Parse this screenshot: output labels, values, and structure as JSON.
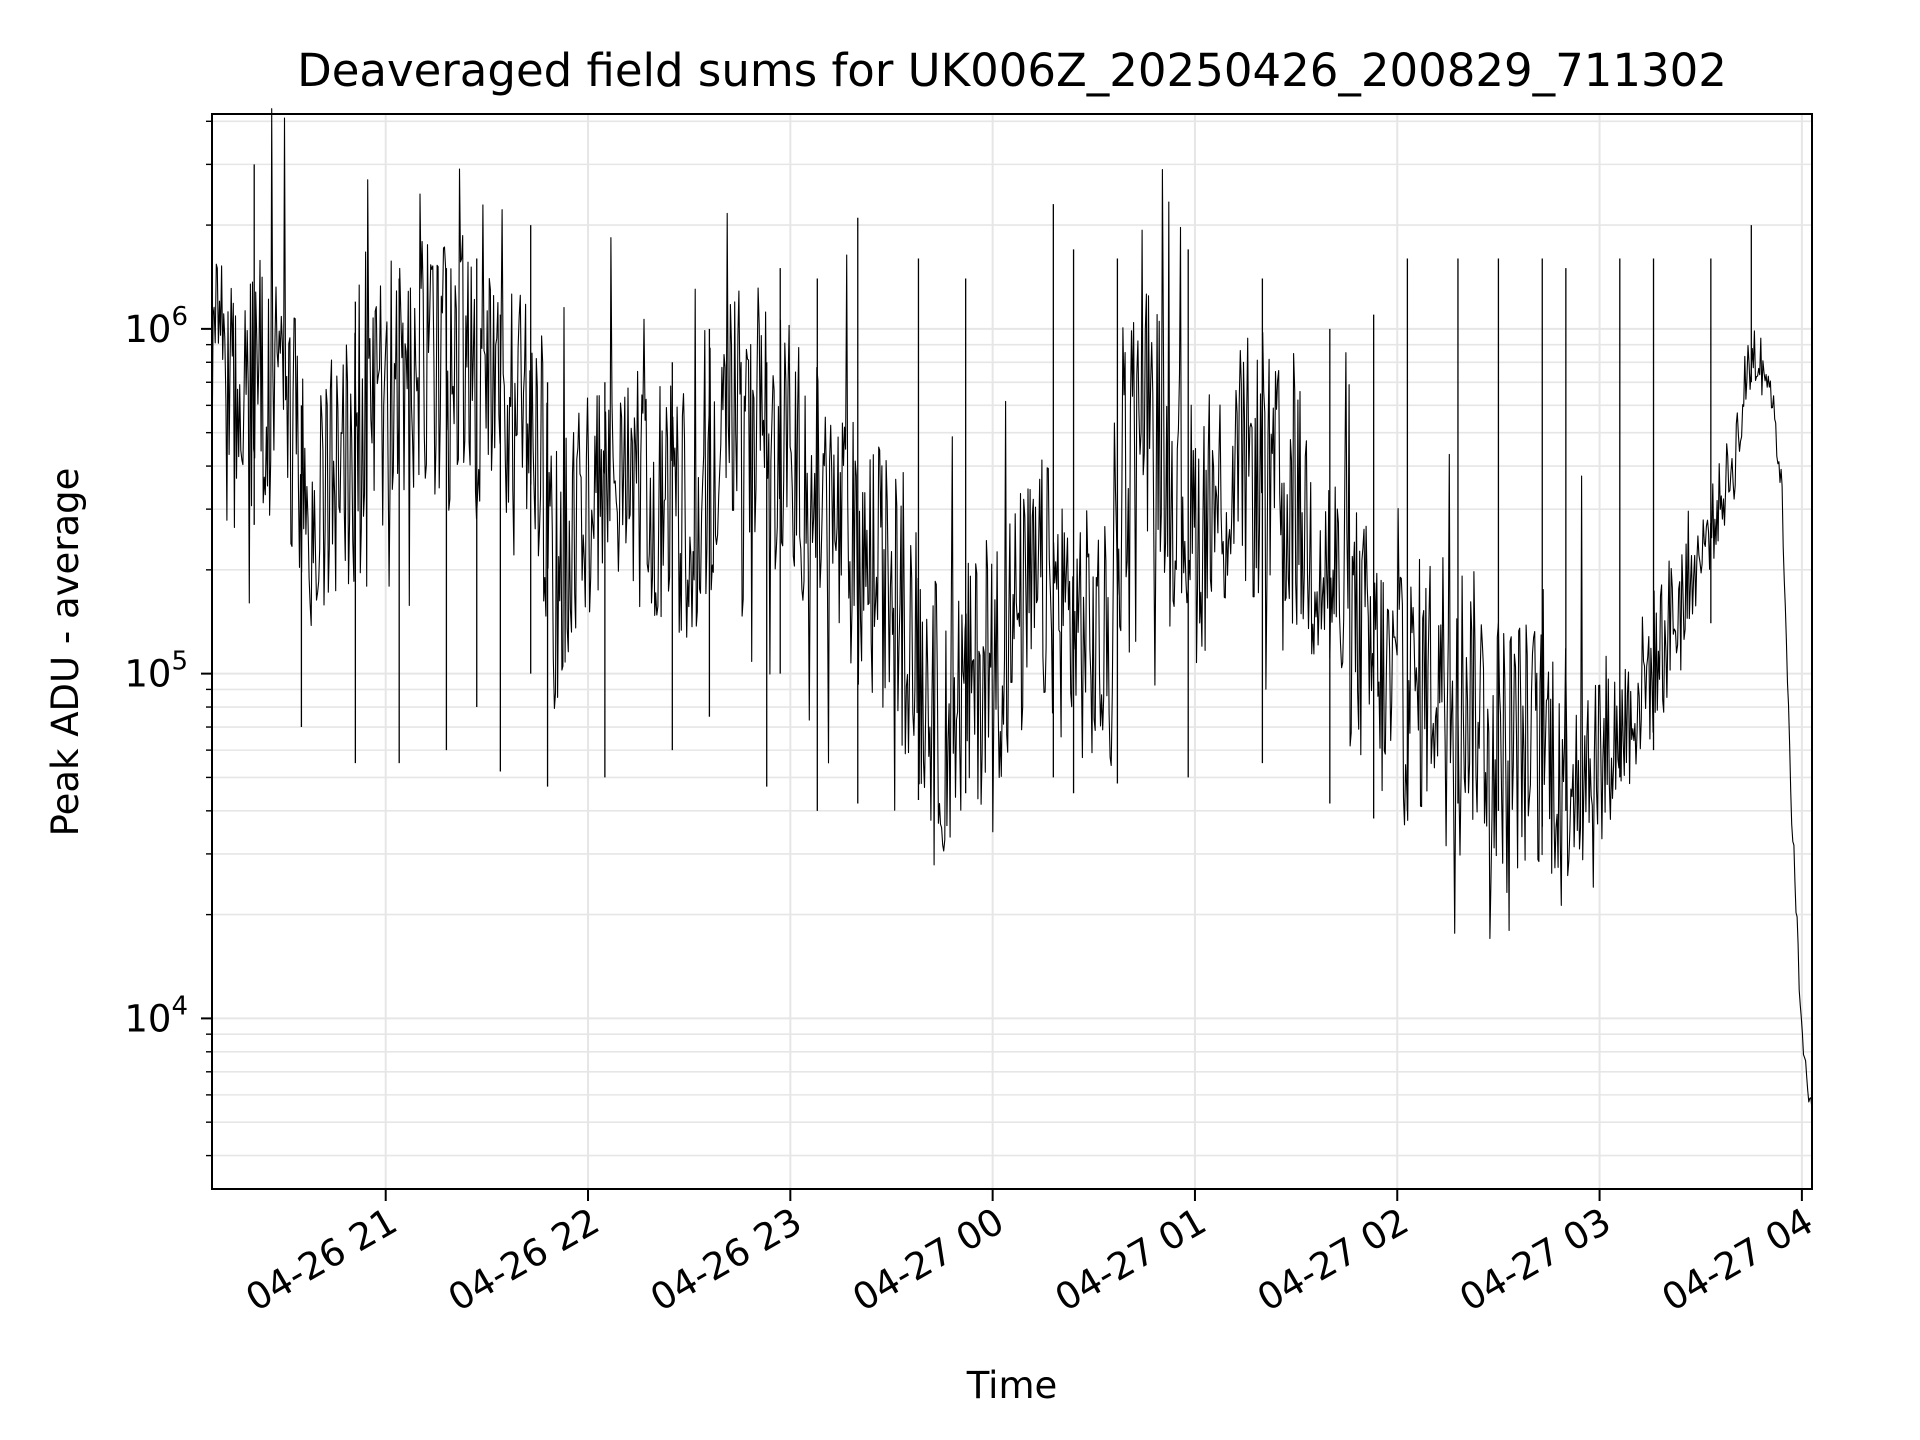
{
  "chart_data": {
    "type": "line",
    "title": "Deaveraged field sums for UK006Z_20250426_200829_711302",
    "xlabel": "Time",
    "ylabel": "Peak ADU - average",
    "yscale": "log",
    "grid": true,
    "line_color": "#000000",
    "grid_color": "#e6e6e6",
    "xlim": [
      "2025-04-26 20:08:29",
      "2025-04-27 04:03:00"
    ],
    "ylim": [
      3200,
      4200000
    ],
    "x_tick_values": [
      "2025-04-26 21:00",
      "2025-04-26 22:00",
      "2025-04-26 23:00",
      "2025-04-27 00:00",
      "2025-04-27 01:00",
      "2025-04-27 02:00",
      "2025-04-27 03:00",
      "2025-04-27 04:00"
    ],
    "x_tick_labels": [
      "04-26 21",
      "04-26 22",
      "04-26 23",
      "04-27 00",
      "04-27 01",
      "04-27 02",
      "04-27 03",
      "04-27 04"
    ],
    "y_ticks": [
      {
        "value": 10000,
        "base": "10",
        "exponent": "4"
      },
      {
        "value": 100000,
        "base": "10",
        "exponent": "5"
      },
      {
        "value": 1000000,
        "base": "10",
        "exponent": "6"
      }
    ],
    "series": [
      {
        "x": [
          "2025-04-26 20:08:29",
          "2025-04-26 20:15",
          "2025-04-26 20:20",
          "2025-04-26 20:25",
          "2025-04-26 20:30",
          "2025-04-26 20:35",
          "2025-04-26 20:40",
          "2025-04-26 20:45",
          "2025-04-26 20:50",
          "2025-04-26 20:55",
          "2025-04-26 21:00",
          "2025-04-26 21:10",
          "2025-04-26 21:20",
          "2025-04-26 21:30",
          "2025-04-26 21:40",
          "2025-04-26 21:45",
          "2025-04-26 21:50",
          "2025-04-26 22:00",
          "2025-04-26 22:15",
          "2025-04-26 22:30",
          "2025-04-26 22:45",
          "2025-04-26 23:00",
          "2025-04-26 23:15",
          "2025-04-26 23:30",
          "2025-04-26 23:45",
          "2025-04-27 00:00",
          "2025-04-27 00:15",
          "2025-04-27 00:30",
          "2025-04-27 00:35",
          "2025-04-27 00:40",
          "2025-04-27 00:45",
          "2025-04-27 01:00",
          "2025-04-27 01:15",
          "2025-04-27 01:30",
          "2025-04-27 01:45",
          "2025-04-27 02:00",
          "2025-04-27 02:15",
          "2025-04-27 02:30",
          "2025-04-27 02:45",
          "2025-04-27 03:00",
          "2025-04-27 03:10",
          "2025-04-27 03:20",
          "2025-04-27 03:30",
          "2025-04-27 03:35",
          "2025-04-27 03:40",
          "2025-04-27 03:45",
          "2025-04-27 03:48",
          "2025-04-27 03:51",
          "2025-04-27 03:54",
          "2025-04-27 03:57",
          "2025-04-27 04:00",
          "2025-04-27 04:02"
        ],
        "y": [
          700000,
          560000,
          620000,
          700000,
          620000,
          400000,
          300000,
          360000,
          450000,
          400000,
          700000,
          800000,
          700000,
          600000,
          550000,
          550000,
          180000,
          300000,
          350000,
          300000,
          550000,
          450000,
          250000,
          180000,
          70000,
          110000,
          180000,
          120000,
          110000,
          500000,
          650000,
          250000,
          400000,
          300000,
          150000,
          80000,
          110000,
          65000,
          60000,
          55000,
          80000,
          130000,
          220000,
          300000,
          420000,
          850000,
          850000,
          650000,
          350000,
          40000,
          8500,
          6000
        ],
        "spikes": [
          {
            "x": "2025-04-26 20:21",
            "low": 270000,
            "high": 3000000
          },
          {
            "x": "2025-04-26 20:35",
            "low": 70000,
            "high": 600000
          },
          {
            "x": "2025-04-26 20:51",
            "low": 55000,
            "high": 1200000
          },
          {
            "x": "2025-04-26 21:04",
            "low": 55000,
            "high": 1400000
          },
          {
            "x": "2025-04-26 21:18",
            "low": 60000,
            "high": 1500000
          },
          {
            "x": "2025-04-26 21:27",
            "low": 80000,
            "high": 1600000
          },
          {
            "x": "2025-04-26 21:34",
            "low": 52000,
            "high": 1100000
          },
          {
            "x": "2025-04-26 21:43",
            "low": 100000,
            "high": 2000000
          },
          {
            "x": "2025-04-26 21:48",
            "low": 47000,
            "high": 700000
          },
          {
            "x": "2025-04-26 22:05",
            "low": 50000,
            "high": 700000
          },
          {
            "x": "2025-04-26 22:25",
            "low": 60000,
            "high": 800000
          },
          {
            "x": "2025-04-26 22:36",
            "low": 75000,
            "high": 1000000
          },
          {
            "x": "2025-04-26 22:53",
            "low": 47000,
            "high": 800000
          },
          {
            "x": "2025-04-26 22:57",
            "low": 100000,
            "high": 1500000
          },
          {
            "x": "2025-04-26 23:08",
            "low": 40000,
            "high": 1400000
          },
          {
            "x": "2025-04-26 23:20",
            "low": 42000,
            "high": 2100000
          },
          {
            "x": "2025-04-26 23:38",
            "low": 43000,
            "high": 1600000
          },
          {
            "x": "2025-04-26 23:52",
            "low": 45000,
            "high": 1400000
          },
          {
            "x": "2025-04-27 00:18",
            "low": 50000,
            "high": 2300000
          },
          {
            "x": "2025-04-27 00:24",
            "low": 45000,
            "high": 1700000
          },
          {
            "x": "2025-04-27 00:37",
            "low": 48000,
            "high": 1600000
          },
          {
            "x": "2025-04-27 00:58",
            "low": 50000,
            "high": 1700000
          },
          {
            "x": "2025-04-27 01:20",
            "low": 55000,
            "high": 1400000
          },
          {
            "x": "2025-04-27 01:40",
            "low": 42000,
            "high": 1000000
          },
          {
            "x": "2025-04-27 01:53",
            "low": 38000,
            "high": 1100000
          },
          {
            "x": "2025-04-27 02:03",
            "low": 40000,
            "high": 1600000
          },
          {
            "x": "2025-04-27 02:18",
            "low": 42000,
            "high": 1600000
          },
          {
            "x": "2025-04-27 02:30",
            "low": 40000,
            "high": 1600000
          },
          {
            "x": "2025-04-27 02:43",
            "low": 36000,
            "high": 1600000
          },
          {
            "x": "2025-04-27 02:50",
            "low": 40000,
            "high": 1500000
          },
          {
            "x": "2025-04-27 03:06",
            "low": 50000,
            "high": 1600000
          },
          {
            "x": "2025-04-27 03:16",
            "low": 60000,
            "high": 1600000
          },
          {
            "x": "2025-04-27 03:33",
            "low": 140000,
            "high": 1600000
          },
          {
            "x": "2025-04-27 03:45",
            "low": 700000,
            "high": 2000000
          }
        ]
      }
    ]
  }
}
